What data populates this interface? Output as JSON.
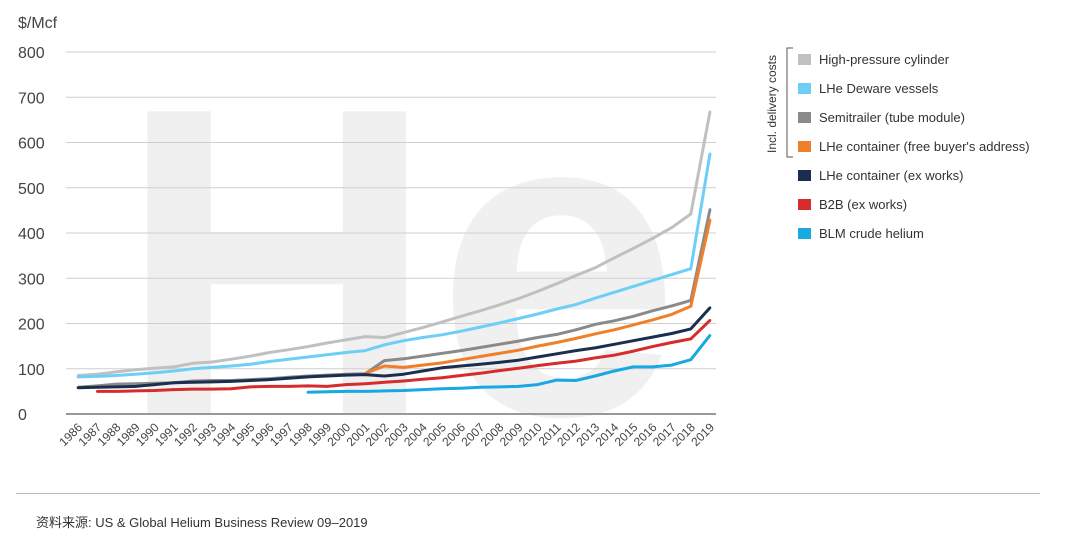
{
  "chart_data": {
    "type": "line",
    "unit_label": "$/Mcf",
    "watermark": "He",
    "ylim": [
      0,
      800
    ],
    "yticks": [
      0,
      100,
      200,
      300,
      400,
      500,
      600,
      700,
      800
    ],
    "grid": true,
    "categories": [
      "1986",
      "1987",
      "1988",
      "1989",
      "1990",
      "1991",
      "1992",
      "1993",
      "1994",
      "1995",
      "1996",
      "1997",
      "1998",
      "1999",
      "2000",
      "2001",
      "2002",
      "2003",
      "2004",
      "2005",
      "2006",
      "2007",
      "2008",
      "2009",
      "2010",
      "2011",
      "2012",
      "2013",
      "2014",
      "2015",
      "2016",
      "2017",
      "2018",
      "2019"
    ],
    "bracket_label": "Incl. delivery costs",
    "series": [
      {
        "name": "High-pressure cylinder",
        "color": "#c0c0c0",
        "values": [
          85,
          88,
          93,
          98,
          101,
          104,
          112,
          115,
          121,
          128,
          136,
          142,
          149,
          157,
          164,
          171,
          169,
          180,
          191,
          203,
          216,
          228,
          241,
          255,
          271,
          288,
          306,
          323,
          345,
          366,
          388,
          412,
          442,
          668
        ]
      },
      {
        "name": "LHe Deware vessels",
        "color": "#6ecff6",
        "values": [
          82,
          83,
          85,
          88,
          91,
          95,
          100,
          103,
          106,
          110,
          116,
          121,
          126,
          131,
          136,
          140,
          153,
          162,
          169,
          175,
          183,
          192,
          201,
          211,
          221,
          232,
          242,
          256,
          269,
          282,
          295,
          308,
          321,
          575
        ]
      },
      {
        "name": "Semitrailer (tube module)",
        "color": "#8a8a8a",
        "values": [
          59,
          62,
          66,
          67,
          68,
          69,
          73,
          74,
          74,
          76,
          78,
          81,
          84,
          86,
          88,
          89,
          118,
          122,
          128,
          134,
          140,
          147,
          154,
          161,
          169,
          176,
          186,
          198,
          206,
          216,
          228,
          239,
          251,
          452
        ]
      },
      {
        "name": "LHe container (free buyer's address)",
        "color": "#f07f2a",
        "values": [
          null,
          null,
          null,
          null,
          null,
          null,
          null,
          null,
          null,
          null,
          null,
          null,
          null,
          null,
          null,
          90,
          106,
          103,
          108,
          113,
          120,
          127,
          134,
          141,
          150,
          158,
          167,
          177,
          186,
          197,
          208,
          220,
          238,
          429
        ]
      },
      {
        "name": "LHe container (ex works)",
        "color": "#1a2e4f",
        "values": [
          58,
          59,
          60,
          61,
          65,
          69,
          70,
          71,
          72,
          74,
          76,
          79,
          82,
          84,
          86,
          87,
          84,
          88,
          95,
          102,
          106,
          110,
          114,
          119,
          126,
          133,
          140,
          146,
          154,
          162,
          170,
          178,
          188,
          235
        ]
      },
      {
        "name": "B2B (ex works)",
        "color": "#d62c2c",
        "values": [
          null,
          50,
          50,
          51,
          52,
          54,
          55,
          55,
          56,
          60,
          61,
          61,
          62,
          61,
          65,
          67,
          70,
          73,
          77,
          80,
          85,
          90,
          96,
          101,
          107,
          112,
          117,
          124,
          130,
          139,
          149,
          158,
          166,
          207
        ]
      },
      {
        "name": "BLM crude helium",
        "color": "#19a8e0",
        "values": [
          null,
          null,
          null,
          null,
          null,
          null,
          null,
          null,
          null,
          null,
          null,
          null,
          48,
          49,
          50,
          50,
          51,
          52,
          54,
          56,
          57,
          59,
          60,
          61,
          65,
          75,
          74,
          84,
          95,
          104,
          104,
          108,
          120,
          174
        ]
      }
    ]
  },
  "source": "资料来源:  US & Global Helium Business Review 09–2019"
}
